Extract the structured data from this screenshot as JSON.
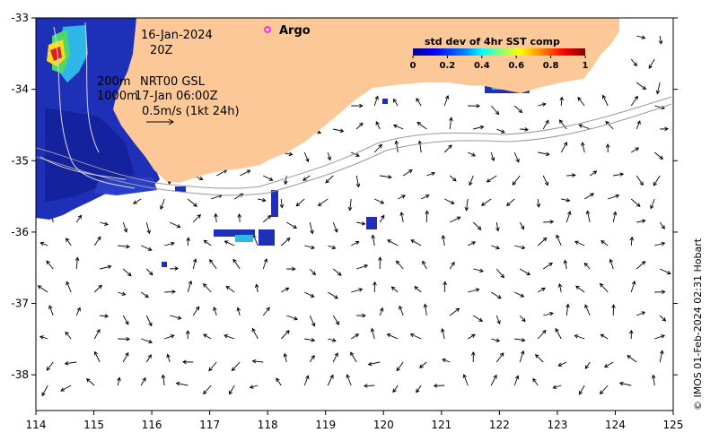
{
  "map": {
    "x_ticks": [
      "114",
      "115",
      "116",
      "117",
      "118",
      "119",
      "120",
      "121",
      "122",
      "123",
      "124",
      "125"
    ],
    "y_ticks": [
      "-33",
      "-34",
      "-35",
      "-36",
      "-37",
      "-38"
    ],
    "lon_range": [
      114,
      125
    ],
    "lat_range": [
      -38.5,
      -33
    ],
    "land_color": "#fdc898",
    "contour_color": "#9a9a9a"
  },
  "labels": {
    "date_line1": "16-Jan-2024",
    "date_line2": "20Z",
    "depth_200": "200m",
    "depth_1000": "1000m",
    "product": "NRT00 GSL",
    "valid_time": "17-Jan 06:00Z",
    "scale_text": "0.5m/s (1kt 24h)",
    "argo": "Argo",
    "credit": "© IMOS 01-Feb-2024 02:31 Hobart"
  },
  "colorbar": {
    "title": "std dev of 4hr SST comp",
    "ticks": [
      "0",
      "0.2",
      "0.4",
      "0.6",
      "0.8",
      "1"
    ],
    "colors": [
      "#00008f",
      "#0000ff",
      "#0080ff",
      "#00ffff",
      "#80ff80",
      "#ffff00",
      "#ff8000",
      "#ff0000",
      "#800000"
    ]
  }
}
